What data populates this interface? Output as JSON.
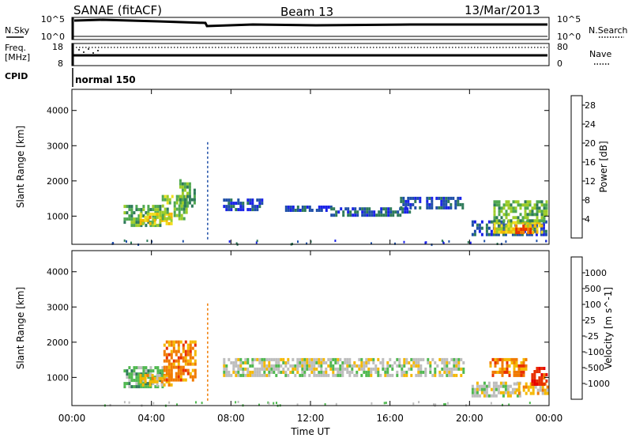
{
  "header": {
    "site": "SANAE (fitACF)",
    "beam": "Beam 13",
    "date": "13/Mar/2013"
  },
  "strips": {
    "sky": {
      "left_label": "N.Sky",
      "right_label": "N.Search",
      "left_ticks": [
        "10^5",
        "10^0"
      ],
      "right_ticks": [
        "10^5",
        "10^0"
      ]
    },
    "freq": {
      "left_label_1": "Freq.",
      "left_label_2": "[MHz]",
      "right_label": "Nave",
      "left_ticks": [
        "18",
        "8"
      ],
      "right_ticks": [
        "80",
        "0"
      ]
    },
    "cpid": {
      "label": "CPID",
      "value": "normal 150"
    }
  },
  "chart_data": [
    {
      "type": "heatmap",
      "title": "",
      "ylabel": "Slant Range [km]",
      "xlabel": "",
      "ylim": [
        200,
        4600
      ],
      "y_ticks": [
        1000,
        2000,
        3000,
        4000
      ],
      "x_ticks": [
        "00:00",
        "04:00",
        "08:00",
        "12:00",
        "16:00",
        "20:00",
        "00:00"
      ],
      "x_tick_hours": [
        0,
        4,
        8,
        12,
        16,
        20,
        24
      ],
      "xlim_hours": [
        0,
        24
      ],
      "colorbar": {
        "label": "Power [dB]",
        "range": [
          0,
          30
        ],
        "tick_labels": [
          "4",
          "8",
          "12",
          "16",
          "20",
          "24",
          "28"
        ],
        "tick_values": [
          4,
          8,
          12,
          16,
          20,
          24,
          28
        ],
        "colors": [
          "#1a22e8",
          "#1f4fa8",
          "#2e7a5a",
          "#4fa84f",
          "#9ccc28",
          "#f0e020",
          "#f5b800",
          "#f07a00",
          "#e83000",
          "#e80000"
        ]
      },
      "regions": [
        {
          "t0": 2.6,
          "t1": 4.4,
          "r0": 780,
          "r1": 1320,
          "v": 10
        },
        {
          "t0": 3.4,
          "t1": 5.0,
          "r0": 760,
          "r1": 1100,
          "v": 18
        },
        {
          "t0": 4.4,
          "t1": 5.8,
          "r0": 900,
          "r1": 1600,
          "v": 12
        },
        {
          "t0": 5.4,
          "t1": 6.2,
          "r0": 1300,
          "r1": 2050,
          "v": 9
        },
        {
          "t0": 7.6,
          "t1": 9.6,
          "r0": 1150,
          "r1": 1500,
          "v": 3
        },
        {
          "t0": 10.6,
          "t1": 13.0,
          "r0": 1150,
          "r1": 1300,
          "v": 3
        },
        {
          "t0": 13.0,
          "t1": 17.0,
          "r0": 1050,
          "r1": 1250,
          "v": 4
        },
        {
          "t0": 16.5,
          "t1": 19.7,
          "r0": 1250,
          "r1": 1550,
          "v": 3
        },
        {
          "t0": 20.1,
          "t1": 23.9,
          "r0": 520,
          "r1": 880,
          "v": 4
        },
        {
          "t0": 21.2,
          "t1": 23.6,
          "r0": 560,
          "r1": 860,
          "v": 17
        },
        {
          "t0": 22.3,
          "t1": 23.3,
          "r0": 580,
          "r1": 760,
          "v": 24
        },
        {
          "t0": 21.2,
          "t1": 23.9,
          "r0": 850,
          "r1": 1450,
          "v": 11
        }
      ]
    },
    {
      "type": "heatmap",
      "title": "",
      "ylabel": "Slant Range [km]",
      "xlabel": "Time UT",
      "ylim": [
        200,
        4600
      ],
      "y_ticks": [
        1000,
        2000,
        3000,
        4000
      ],
      "x_ticks": [
        "00:00",
        "04:00",
        "08:00",
        "12:00",
        "16:00",
        "20:00",
        "00:00"
      ],
      "x_tick_hours": [
        0,
        4,
        8,
        12,
        16,
        20,
        24
      ],
      "xlim_hours": [
        0,
        24
      ],
      "colorbar": {
        "label": "Velocity [m s^-1]",
        "tick_labels": [
          "1000",
          "500",
          "100",
          "25",
          "-25",
          "-100",
          "-500",
          "-1000"
        ],
        "colors": [
          "#1a22e8",
          "#1f4fa8",
          "#2e7a5a",
          "#4fb84f",
          "#bdbdbd",
          "#f5b800",
          "#f07a00",
          "#e83000",
          "#e80000"
        ]
      },
      "regions": [
        {
          "t0": 2.6,
          "t1": 4.6,
          "r0": 780,
          "r1": 1320,
          "c": 3
        },
        {
          "t0": 3.4,
          "t1": 5.0,
          "r0": 760,
          "r1": 1100,
          "c": 5
        },
        {
          "t0": 4.6,
          "t1": 6.2,
          "r0": 900,
          "r1": 2050,
          "c": 6
        },
        {
          "t0": 7.6,
          "t1": 19.7,
          "r0": 1050,
          "r1": 1550,
          "c": 4
        },
        {
          "t0": 20.1,
          "t1": 22.6,
          "r0": 520,
          "r1": 880,
          "c": 4
        },
        {
          "t0": 22.2,
          "t1": 23.9,
          "r0": 540,
          "r1": 860,
          "c": 5
        },
        {
          "t0": 21.0,
          "t1": 22.8,
          "r0": 1050,
          "r1": 1550,
          "c": 6
        },
        {
          "t0": 23.1,
          "t1": 23.9,
          "r0": 800,
          "r1": 1300,
          "c": 7
        }
      ]
    }
  ]
}
